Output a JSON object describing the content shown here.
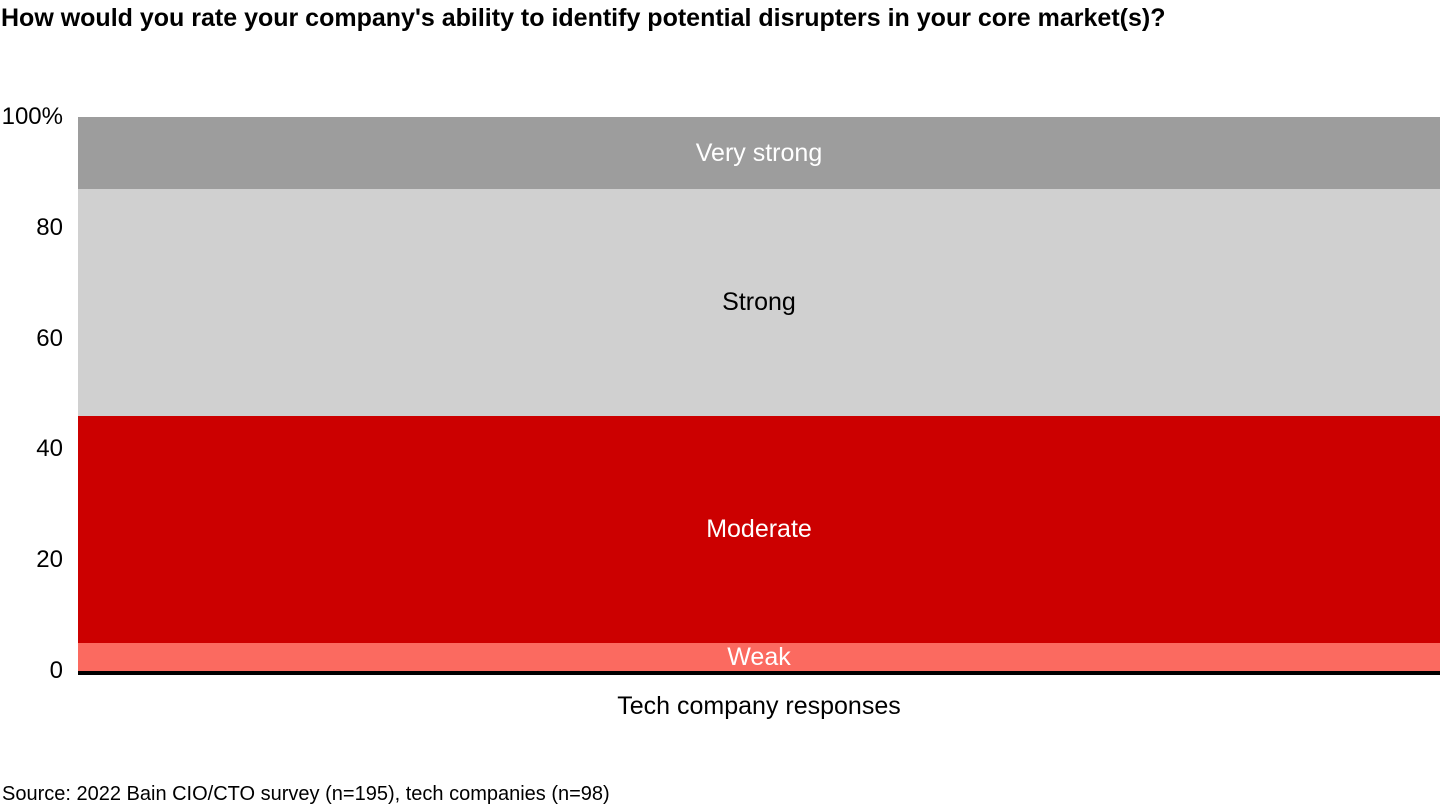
{
  "title": "How would you rate your company's ability to identify potential disrupters in your core market(s)?",
  "source": "Source: 2022 Bain CIO/CTO survey (n=195), tech companies (n=98)",
  "chart_data": {
    "type": "bar",
    "stacked": true,
    "stack_order": "bottom-to-top",
    "title": "How would you rate your company's ability to identify potential disrupters in your core market(s)?",
    "categories": [
      "Tech company responses"
    ],
    "series": [
      {
        "name": "Weak",
        "values": [
          5
        ],
        "color": "#fb6a60",
        "label_color": "#ffffff"
      },
      {
        "name": "Moderate",
        "values": [
          41
        ],
        "color": "#cc0000",
        "label_color": "#ffffff"
      },
      {
        "name": "Strong",
        "values": [
          41
        ],
        "color": "#d0d0d0",
        "label_color": "#000000"
      },
      {
        "name": "Very strong",
        "values": [
          13
        ],
        "color": "#9d9d9d",
        "label_color": "#ffffff"
      }
    ],
    "xlabel": "Tech company responses",
    "ylabel": "",
    "ylim": [
      0,
      100
    ],
    "yticks": [
      {
        "value": 0,
        "label": "0"
      },
      {
        "value": 20,
        "label": "20"
      },
      {
        "value": 40,
        "label": "40"
      },
      {
        "value": 60,
        "label": "60"
      },
      {
        "value": 80,
        "label": "80"
      },
      {
        "value": 100,
        "label": "100%"
      }
    ],
    "grid": false,
    "legend": "none (series labels rendered inside segments)",
    "axis_color": "#000000",
    "source": "Source: 2022 Bain CIO/CTO survey (n=195), tech companies (n=98)"
  }
}
